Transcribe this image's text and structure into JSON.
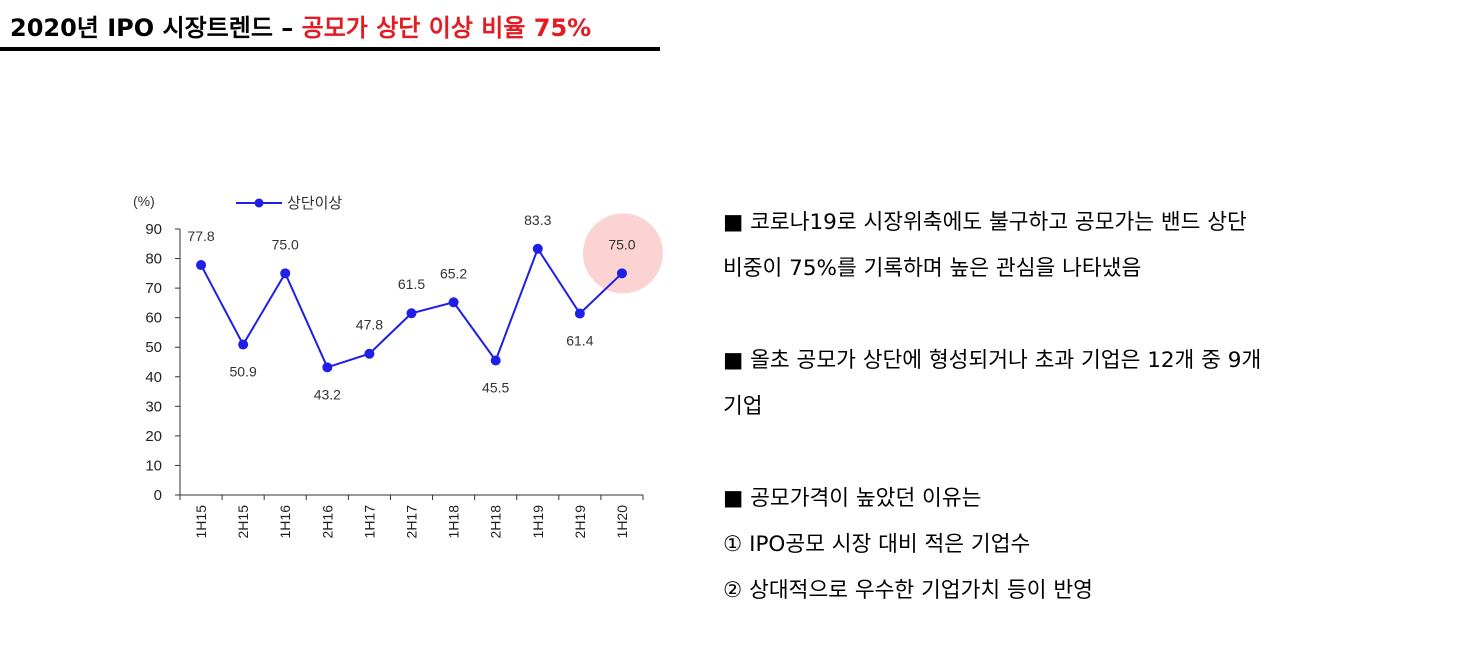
{
  "header": {
    "title_main": "2020년 IPO 시장트렌드 – ",
    "title_highlight": "공모가 상단 이상 비율 75%"
  },
  "colors": {
    "series": "#1f1fe6",
    "highlight_circle": "#fbd3d3",
    "title_highlight": "#e31b23"
  },
  "chart_data": {
    "type": "line",
    "unit_label": "(%)",
    "categories": [
      "1H15",
      "2H15",
      "1H16",
      "2H16",
      "1H17",
      "2H17",
      "1H18",
      "2H18",
      "1H19",
      "2H19",
      "1H20"
    ],
    "series": [
      {
        "name": "상단이상",
        "values": [
          77.8,
          50.9,
          75.0,
          43.2,
          47.8,
          61.5,
          65.2,
          45.5,
          83.3,
          61.4,
          75.0
        ]
      }
    ],
    "data_labels": [
      "77.8",
      "50.9",
      "75.0",
      "43.2",
      "47.8",
      "61.5",
      "65.2",
      "45.5",
      "83.3",
      "61.4",
      "75.0"
    ],
    "ylim": [
      0,
      90
    ],
    "yticks": [
      0,
      10,
      20,
      30,
      40,
      50,
      60,
      70,
      80,
      90
    ],
    "ytick_labels": [
      "0",
      "10",
      "20",
      "30",
      "40",
      "50",
      "60",
      "70",
      "80",
      "90"
    ],
    "legend_position": "top-left",
    "grid": false,
    "highlighted_category": "1H20"
  },
  "notes": {
    "p1": [
      "■ 코로나19로 시장위축에도 불구하고 공모가는 밴드 상단",
      "비중이 75%를 기록하며 높은 관심을 나타냈음"
    ],
    "p2": [
      "■ 올초 공모가 상단에 형성되거나 초과 기업은 12개 중 9개",
      "기업"
    ],
    "p3": [
      "■ 공모가격이 높았던 이유는",
      "① IPO공모 시장 대비 적은 기업수",
      "② 상대적으로 우수한 기업가치 등이 반영"
    ]
  }
}
